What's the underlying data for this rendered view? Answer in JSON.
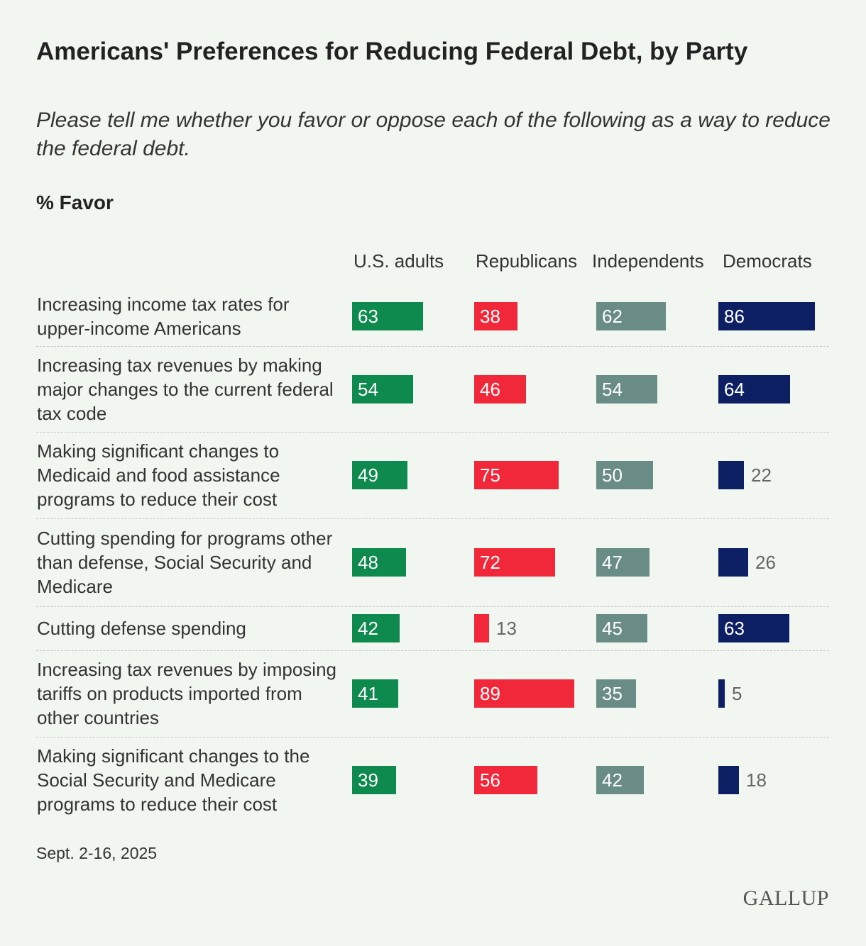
{
  "title": "Americans' Preferences for Reducing Federal Debt, by Party",
  "subtitle": "Please tell me whether you favor or oppose each of the following as a way to reduce the federal debt.",
  "metric_label": "% Favor",
  "footnote": "Sept. 2-16, 2025",
  "brand": "GALLUP",
  "colors": {
    "us_adults": "#0e8a4f",
    "republicans": "#f0283a",
    "independents": "#6a8c86",
    "democrats": "#0c1f63",
    "background": "#f2f6f0"
  },
  "chart_data": {
    "type": "bar",
    "orientation": "horizontal",
    "title": "Americans' Preferences for Reducing Federal Debt, by Party",
    "categories": [
      "Increasing income tax rates for upper-income Americans",
      "Increasing tax revenues by making major changes to the current federal tax code",
      "Making significant changes to Medicaid and food assistance programs to reduce their cost",
      "Cutting spending for programs other than defense, Social Security and Medicare",
      "Cutting defense spending",
      "Increasing tax revenues by imposing tariffs on products imported from other countries",
      "Making significant changes to the Social Security and Medicare programs to reduce their cost"
    ],
    "series": [
      {
        "name": "U.S. adults",
        "color": "#0e8a4f",
        "values": [
          63,
          54,
          49,
          48,
          42,
          41,
          39
        ]
      },
      {
        "name": "Republicans",
        "color": "#f0283a",
        "values": [
          38,
          46,
          75,
          72,
          13,
          89,
          56
        ]
      },
      {
        "name": "Independents",
        "color": "#6a8c86",
        "values": [
          62,
          54,
          50,
          47,
          45,
          35,
          42
        ]
      },
      {
        "name": "Democrats",
        "color": "#0c1f63",
        "values": [
          86,
          64,
          22,
          26,
          63,
          5,
          18
        ]
      }
    ],
    "xlim": [
      0,
      100
    ],
    "units": "% Favor"
  }
}
